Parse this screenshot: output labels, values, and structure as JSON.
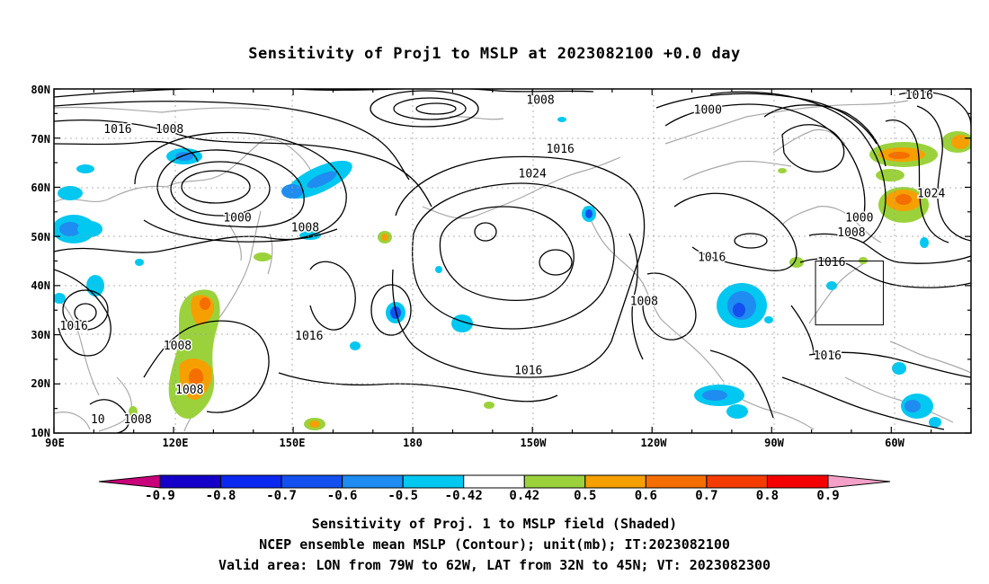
{
  "title": "Sensitivity of Proj1 to MSLP at 2023082100 +0.0 day",
  "axes": {
    "lat_labels": [
      "80N",
      "70N",
      "60N",
      "50N",
      "40N",
      "30N",
      "20N",
      "10N"
    ],
    "lon_labels": [
      "90E",
      "120E",
      "150E",
      "180",
      "150W",
      "120W",
      "90W",
      "60W"
    ]
  },
  "contour_labels": [
    {
      "text": "1016",
      "lon": 106,
      "lat": 71
    },
    {
      "text": "1008",
      "lon": 119,
      "lat": 71
    },
    {
      "text": "1000",
      "lon": 136,
      "lat": 53
    },
    {
      "text": "1008",
      "lon": 153,
      "lat": 51
    },
    {
      "text": "1008",
      "lon": -148,
      "lat": 77
    },
    {
      "text": "1024",
      "lon": -150,
      "lat": 62
    },
    {
      "text": "1016",
      "lon": -143,
      "lat": 67
    },
    {
      "text": "1000",
      "lon": -106,
      "lat": 75
    },
    {
      "text": "1016",
      "lon": -53,
      "lat": 78
    },
    {
      "text": "1024",
      "lon": -50,
      "lat": 58
    },
    {
      "text": "1000",
      "lon": -68,
      "lat": 53
    },
    {
      "text": "1008",
      "lon": -70,
      "lat": 50
    },
    {
      "text": "1016",
      "lon": -75,
      "lat": 44
    },
    {
      "text": "1016",
      "lon": -105,
      "lat": 45
    },
    {
      "text": "1008",
      "lon": -122,
      "lat": 36
    },
    {
      "text": "1016",
      "lon": -151,
      "lat": 22
    },
    {
      "text": "1016",
      "lon": 154,
      "lat": 29
    },
    {
      "text": "1016",
      "lon": 95,
      "lat": 31
    },
    {
      "text": "1008",
      "lon": 121,
      "lat": 27
    },
    {
      "text": "1008",
      "lon": 124,
      "lat": 18
    },
    {
      "text": "1008",
      "lon": 111,
      "lat": 12
    },
    {
      "text": "10",
      "lon": 101,
      "lat": 12
    },
    {
      "text": "1016",
      "lon": -76,
      "lat": 25
    }
  ],
  "valid_box": {
    "lon_min": -79,
    "lon_max": -62,
    "lat_min": 32,
    "lat_max": 45
  },
  "colorbar": {
    "labels": [
      "-0.9",
      "-0.8",
      "-0.7",
      "-0.6",
      "-0.5",
      "-0.42",
      "0.42",
      "0.5",
      "0.6",
      "0.7",
      "0.8",
      "0.9"
    ],
    "colors": [
      "#1400c8",
      "#0a28f0",
      "#1450f0",
      "#1e8cf0",
      "#00c8f0",
      "#ffffff",
      "#9bd23c",
      "#f5a000",
      "#f56e00",
      "#f53c00",
      "#f50000"
    ],
    "low_color": "#c8007a",
    "high_color": "#f5a0c8"
  },
  "captions": [
    "Sensitivity of Proj. 1 to MSLP field (Shaded)",
    "NCEP ensemble mean MSLP (Contour); unit(mb); IT:2023082100",
    "Valid area: LON from 79W to 62W, LAT from 32N to 45N; VT: 2023082300"
  ]
}
